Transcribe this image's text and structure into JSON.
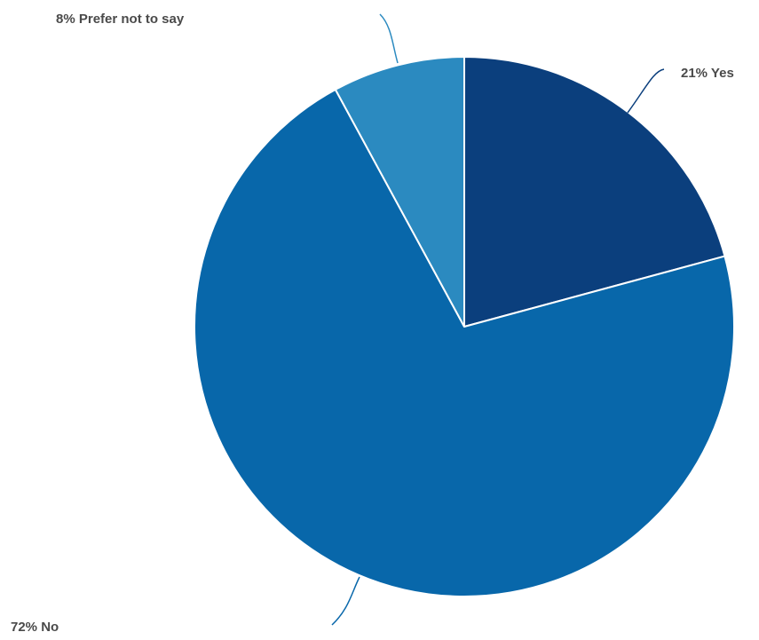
{
  "chart_data": {
    "type": "pie",
    "title": "",
    "slices": [
      {
        "label": "21% Yes",
        "category": "Yes",
        "value": 21,
        "color": "#0b3f7d"
      },
      {
        "label": "72% No",
        "category": "No",
        "value": 72,
        "color": "#0867aa"
      },
      {
        "label": "8% Prefer not to say",
        "category": "Prefer not to say",
        "value": 8,
        "color": "#2b8ac0"
      }
    ],
    "start_angle_deg": 0,
    "direction": "clockwise",
    "slice_border_color": "#ffffff",
    "label_color": "#4a4a4a",
    "legend": "none"
  }
}
